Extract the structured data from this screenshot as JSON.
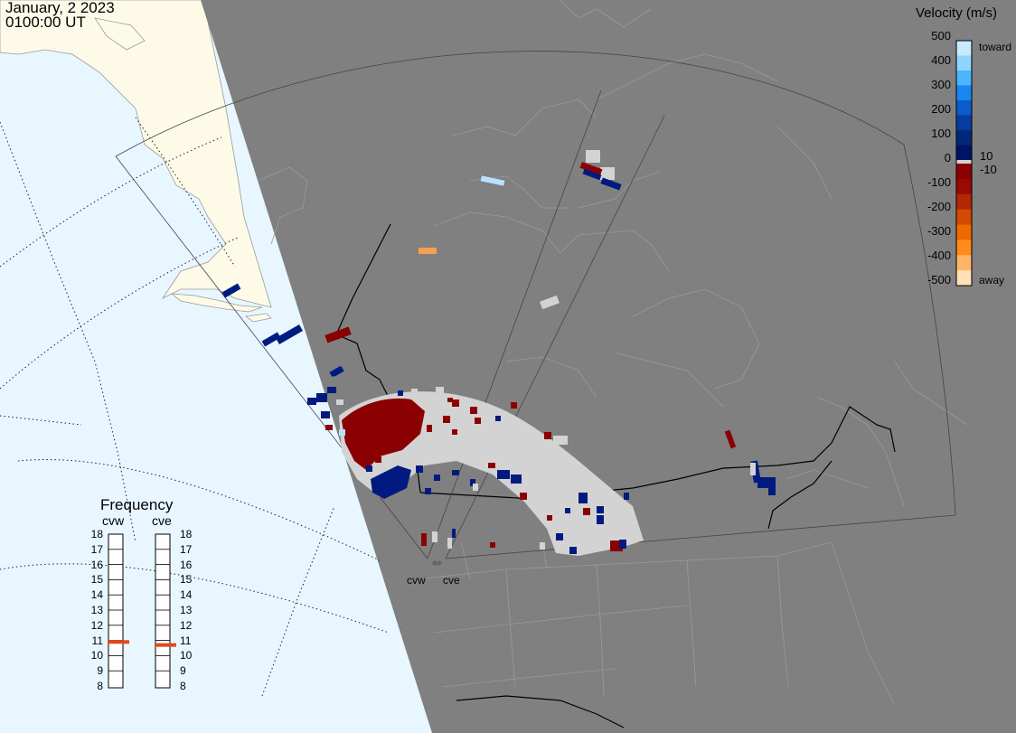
{
  "header": {
    "date": "January, 2 2023",
    "time": "0100:00 UT"
  },
  "colorbar": {
    "title": "Velocity (m/s)",
    "ticks": [
      "500",
      "400",
      "300",
      "200",
      "100",
      "10",
      "0",
      "-10",
      "-100",
      "-200",
      "-300",
      "-400",
      "-500"
    ],
    "toward_label": "toward",
    "away_label": "away",
    "positive_colors": [
      "#c8eaff",
      "#8fd6ff",
      "#4bb6ff",
      "#1a86f0",
      "#0a5ccc",
      "#063d9e",
      "#02287a",
      "#001466"
    ],
    "negative_colors": [
      "#8b0000",
      "#9a0a00",
      "#b32800",
      "#d44a00",
      "#ee6a00",
      "#ff8c1a",
      "#ffb466",
      "#ffe0b8"
    ]
  },
  "frequency": {
    "title": "Frequency",
    "radar_left": "cvw",
    "radar_right": "cve",
    "scale": [
      "18",
      "17",
      "16",
      "15",
      "14",
      "13",
      "12",
      "11",
      "10",
      "9",
      "8"
    ],
    "cvw_mhz": 10.9,
    "cve_mhz": 10.7,
    "indicator_color": "#e04a1a"
  },
  "radars": {
    "west": "cvw",
    "east": "cve"
  },
  "colors": {
    "ocean": "#e8f6ff",
    "night_shade": "#808080",
    "day_land": "#fdfbe8",
    "ground_scatter": "#d3d3d3",
    "borders": "#000000",
    "coastlines": "#9a9a9a"
  }
}
